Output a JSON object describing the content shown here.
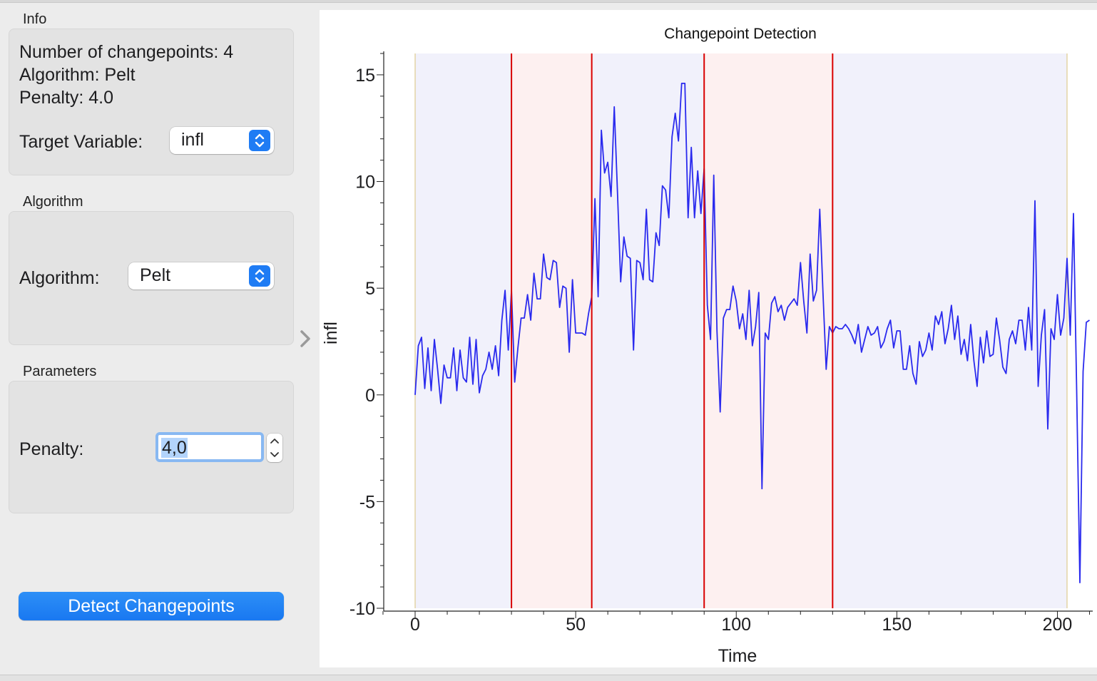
{
  "info": {
    "title": "Info",
    "changepoints_text": "Number of changepoints: 4",
    "algorithm_text": "Algorithm: Pelt",
    "penalty_text": "Penalty: 4.0",
    "target_label": "Target Variable:",
    "target_value": "infl"
  },
  "algorithm_box": {
    "title": "Algorithm",
    "label": "Algorithm:",
    "value": "Pelt"
  },
  "parameters_box": {
    "title": "Parameters",
    "penalty_label": "Penalty:",
    "penalty_value": "4,0"
  },
  "detect_button": "Detect Changepoints",
  "colors": {
    "line": "#2a2aee",
    "changepoint": "#d90000",
    "segment_a": "#f1f1fb",
    "segment_b": "#fdf0f0",
    "accent": "#1f7cf4"
  },
  "chart_data": {
    "type": "line",
    "title": "Changepoint Detection",
    "xlabel": "Time",
    "ylabel": "infl",
    "xlim": [
      -10,
      212
    ],
    "ylim": [
      -10,
      16
    ],
    "xticks": [
      0,
      50,
      100,
      150,
      200
    ],
    "yticks": [
      15,
      10,
      5,
      0,
      -5,
      -10
    ],
    "changepoints": [
      30,
      55,
      90,
      130
    ],
    "segment_bounds": [
      0,
      203
    ],
    "series": [
      {
        "values": [
          0,
          2.3,
          2.7,
          0.3,
          2.2,
          0.2,
          2.6,
          1.2,
          -0.4,
          1.4,
          0.8,
          0.8,
          2.2,
          0.2,
          2.1,
          0.8,
          0.6,
          2.7,
          0.5,
          2.6,
          0.1,
          0.9,
          1.2,
          2,
          1.2,
          2.3,
          0.9,
          3.5,
          4.9,
          2.1,
          4.9,
          0.6,
          2.2,
          3.6,
          3.6,
          4.7,
          3.5,
          5.7,
          4.5,
          4.5,
          6.6,
          5.5,
          5.4,
          6.3,
          6.2,
          4.1,
          5.1,
          5,
          2,
          5.4,
          2.9,
          2.9,
          2.9,
          2.8,
          3.8,
          4.6,
          9.2,
          4.6,
          12.4,
          10.4,
          10.9,
          9.3,
          13.5,
          9.5,
          5.3,
          7.4,
          6.5,
          6.4,
          2.1,
          6.3,
          6.2,
          5.4,
          8.7,
          5.4,
          5.3,
          7.6,
          7,
          9.8,
          9.6,
          8.3,
          12.1,
          13.2,
          11.9,
          14.6,
          14.6,
          8.3,
          11.6,
          8.3,
          10.5,
          8.5,
          10.6,
          4.2,
          2.6,
          10.3,
          3,
          -0.8,
          3.6,
          4,
          4,
          5.1,
          4.4,
          3.1,
          3.8,
          2.6,
          4.9,
          2.3,
          3.2,
          4.8,
          -4.4,
          2.9,
          2.6,
          4.3,
          4.6,
          3.9,
          4.2,
          3.5,
          4.1,
          4.3,
          4.5,
          4.2,
          6.2,
          4.4,
          2.9,
          6.6,
          4.4,
          4.9,
          8.7,
          4.8,
          1.2,
          3.2,
          2.9,
          3.2,
          3.1,
          3.1,
          3.3,
          3.1,
          2.8,
          2.4,
          3.3,
          2,
          2.6,
          3.2,
          2.8,
          2.9,
          3.2,
          2.2,
          2.5,
          3.1,
          3.5,
          2.2,
          3,
          3,
          1.2,
          1.2,
          2.3,
          1,
          0.5,
          2.5,
          1.8,
          2.1,
          2.9,
          2.1,
          3.7,
          3.3,
          3.9,
          2.4,
          3.1,
          4.2,
          2.6,
          3.7,
          1.9,
          2.6,
          1.6,
          3.3,
          1.6,
          0.4,
          2.7,
          1.5,
          3,
          1.8,
          1.9,
          3.6,
          2.6,
          1.3,
          1,
          2.6,
          3,
          2.4,
          3.5,
          3.5,
          2.1,
          4.1,
          2.1,
          9.1,
          0.4,
          2.8,
          4,
          -1.6,
          3.1,
          2.6,
          4.7,
          2.8,
          3.6,
          6.4,
          2.8,
          8.5,
          0.2,
          -8.8,
          1.1,
          3.4,
          3.5
        ]
      }
    ]
  }
}
